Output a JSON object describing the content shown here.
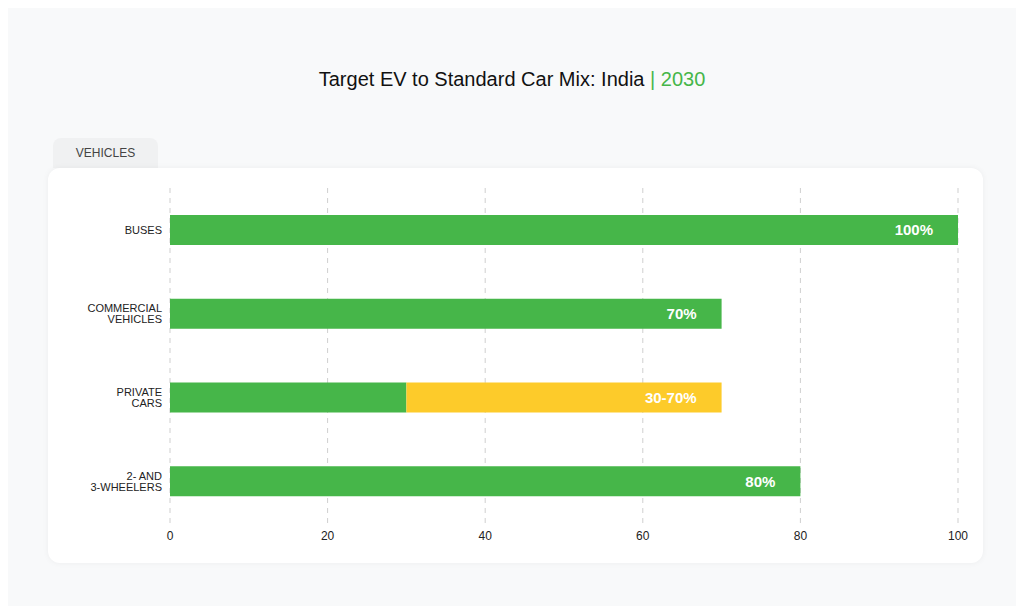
{
  "chart_data": {
    "type": "bar",
    "title": "Target EV to Standard Car Mix: India | 2030",
    "y_label": "VEHICLES",
    "categories": [
      "BUSES",
      "COMMERCIAL VEHICLES",
      "PRIVATE CARS",
      "2- AND 3-WHEELERS"
    ],
    "series": [
      {
        "color": "#46b649",
        "values": [
          100,
          70,
          30,
          80
        ],
        "value_labels": [
          "100%",
          "70%",
          null,
          "80%"
        ]
      },
      {
        "color": "#fdcb2a",
        "values": [
          null,
          null,
          40,
          null
        ],
        "value_labels": [
          null,
          null,
          "30-70%",
          null
        ]
      }
    ],
    "orientation": "horizontal",
    "stacked": true,
    "data_labels": true,
    "xlim": [
      0,
      100
    ],
    "xticks": [
      0,
      20,
      40,
      60,
      80,
      100
    ],
    "grid": true
  }
}
